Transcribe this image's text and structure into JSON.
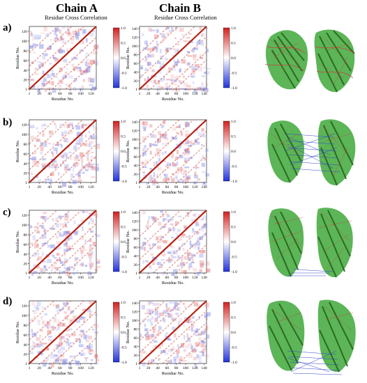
{
  "header": {
    "chain_a": "Chain A",
    "chain_b": "Chain B",
    "subtitle_a": "Residue Cross Correlation",
    "subtitle_b": "Residue Cross Correlation"
  },
  "rows": [
    {
      "label": "a)"
    },
    {
      "label": "b)"
    },
    {
      "label": "c)"
    },
    {
      "label": "d)"
    }
  ],
  "axes": {
    "x_label": "Residue No.",
    "y_label": "Residue No.",
    "chain_a_ticks": [
      "1",
      "20",
      "40",
      "60",
      "80",
      "100",
      "120"
    ],
    "chain_a_tick_values": [
      1,
      20,
      40,
      60,
      80,
      100,
      120
    ],
    "chain_a_max": 130,
    "chain_b_ticks": [
      "1",
      "20",
      "40",
      "60",
      "80",
      "100",
      "120",
      "140"
    ],
    "chain_b_tick_values": [
      1,
      20,
      40,
      60,
      80,
      100,
      120,
      140
    ],
    "chain_b_max": 145
  },
  "colorbar": {
    "ticks": [
      "1.0",
      "0.5",
      "0.0",
      "-0.5",
      "-1.0"
    ],
    "tick_values": [
      1.0,
      0.5,
      0.0,
      -0.5,
      -1.0
    ],
    "colors": {
      "pos": "#d42020",
      "neutral": "#ffffff",
      "neg": "#2233dd"
    }
  },
  "chart_data": {
    "type": "heatmap",
    "metric": "Residue Cross Correlation",
    "panels": [
      "a-A",
      "a-B",
      "b-A",
      "b-B",
      "c-A",
      "c-B",
      "d-A",
      "d-B"
    ],
    "zlim": [
      -1.0,
      1.0
    ]
  }
}
